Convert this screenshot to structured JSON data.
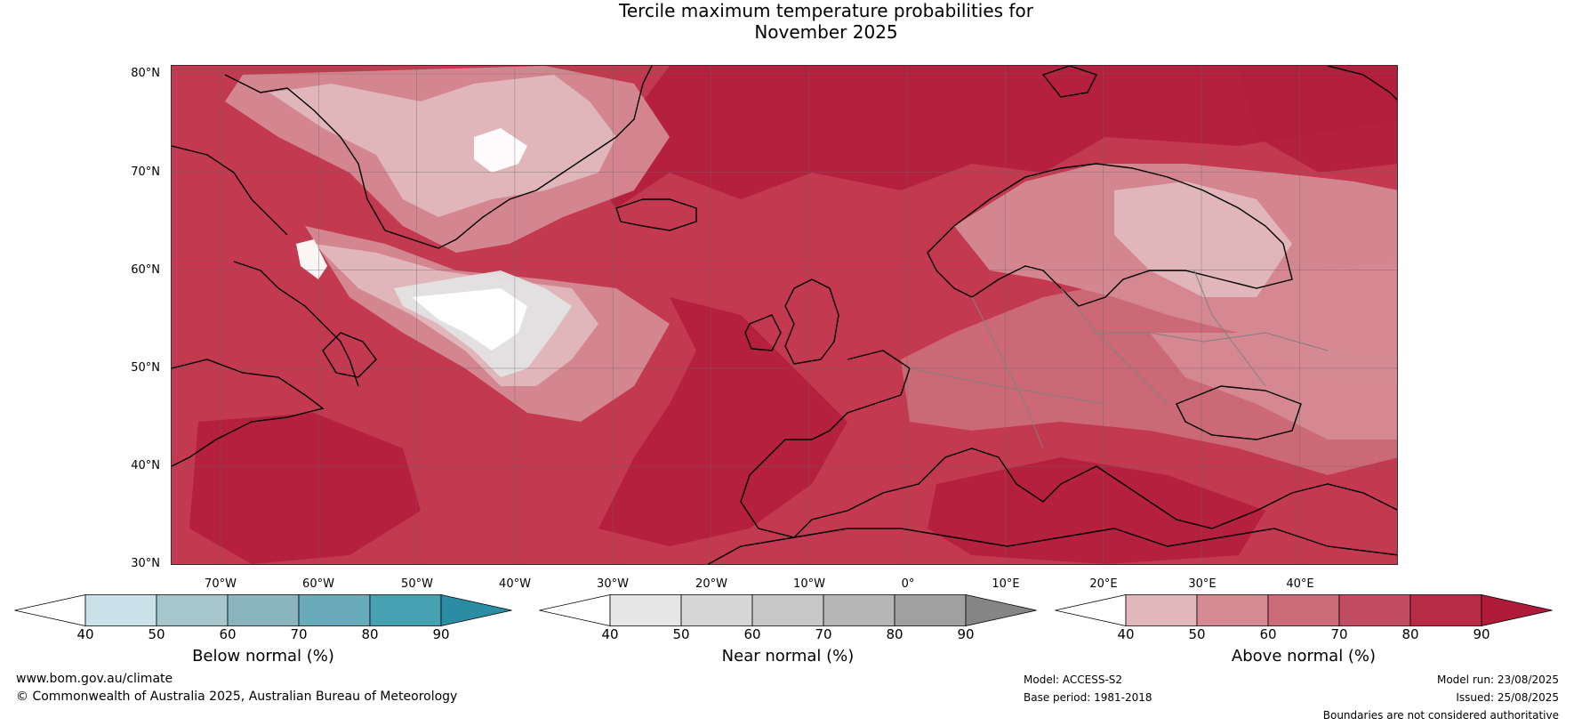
{
  "title": {
    "line1": "Tercile maximum temperature probabilities for",
    "line2": "November 2025"
  },
  "map": {
    "lat_labels": [
      "80°N",
      "70°N",
      "60°N",
      "50°N",
      "40°N",
      "30°N"
    ],
    "lon_labels": [
      "70°W",
      "60°W",
      "50°W",
      "40°W",
      "30°W",
      "20°W",
      "10°W",
      "0°",
      "10°E",
      "20°E",
      "30°E",
      "40°E"
    ],
    "colors": {
      "background": "#c3394f",
      "light_pink": "#e2b8bd",
      "pink": "#d58a94",
      "rose": "#cc6b78",
      "red": "#c3394f",
      "dark_red": "#b31f3c",
      "near_light": "#e3e3e3",
      "coast": "#000000",
      "border": "#808080",
      "grid": "#666666"
    }
  },
  "colorbars": [
    {
      "label": "Below normal (%)",
      "ticks": [
        "40",
        "50",
        "60",
        "70",
        "80",
        "90"
      ],
      "colors": [
        "#ffffff",
        "#c9e2e9",
        "#a6c6cd",
        "#8ab4bf",
        "#6aabbb",
        "#46a2b3",
        "#2b8da3"
      ]
    },
    {
      "label": "Near normal (%)",
      "ticks": [
        "40",
        "50",
        "60",
        "70",
        "80",
        "90"
      ],
      "colors": [
        "#ffffff",
        "#e6e6e6",
        "#d6d6d6",
        "#c8c8c8",
        "#b5b5b5",
        "#a0a0a0",
        "#858585"
      ]
    },
    {
      "label": "Above normal (%)",
      "ticks": [
        "40",
        "50",
        "60",
        "70",
        "80",
        "90"
      ],
      "colors": [
        "#ffffff",
        "#e2b8bd",
        "#d58a94",
        "#cc6b78",
        "#c24c61",
        "#b82d45",
        "#b11b3a"
      ]
    }
  ],
  "footer": {
    "website": "www.bom.gov.au/climate",
    "copyright": "© Commonwealth of Australia 2025, Australian Bureau of Meteorology",
    "model": "Model: ACCESS-S2",
    "base_period": "Base period: 1981-2018",
    "model_run": "Model run: 23/08/2025",
    "issued": "Issued: 25/08/2025",
    "disclaimer": "Boundaries are not considered authoritative"
  }
}
